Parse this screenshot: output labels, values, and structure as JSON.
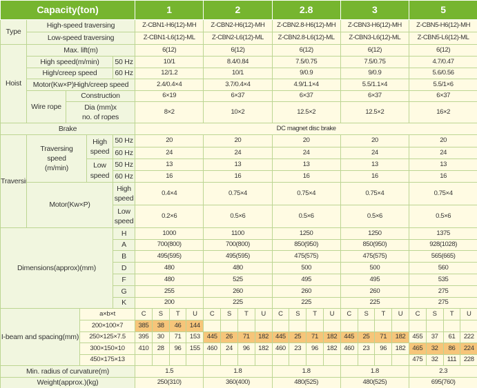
{
  "header": {
    "label": "Capacity(ton)",
    "capacities": [
      "1",
      "2",
      "2.8",
      "3",
      "5"
    ]
  },
  "type": {
    "label": "Type",
    "rows": [
      {
        "label": "High-speed traversing",
        "values": [
          "Z-CBN1-H6(12)-MH",
          "Z-CBN2-H6(12)-MH",
          "Z-CBN2.8-H6(12)-MH",
          "Z-CBN3-H6(12)-MH",
          "Z-CBN5-H6(12)-MH"
        ]
      },
      {
        "label": "Low-speed traversing",
        "values": [
          "Z-CBN1-L6(12)-ML",
          "Z-CBN2-L6(12)-ML",
          "Z-CBN2.8-L6(12)-ML",
          "Z-CBN3-L6(12)-ML",
          "Z-CBN5-L6(12)-ML"
        ]
      }
    ]
  },
  "hoist": {
    "label": "Hoist",
    "max_lift": {
      "label": "Max. lift(m)",
      "values": [
        "6(12)",
        "6(12)",
        "6(12)",
        "6(12)",
        "6(12)"
      ]
    },
    "speed": {
      "rows": [
        {
          "label": "High speed(m/min)",
          "freq": "50 Hz",
          "values": [
            "10/1",
            "8.4/0.84",
            "7.5/0.75",
            "7.5/0.75",
            "4.7/0.47"
          ]
        },
        {
          "label": "High/creep speed",
          "freq": "60 Hz",
          "values": [
            "12/1.2",
            "10/1",
            "9/0.9",
            "9/0.9",
            "5.6/0.56"
          ]
        }
      ]
    },
    "motor": {
      "label": "Motor(Kw×P)High/creep speed",
      "values": [
        "2.4/0.4×4",
        "3.7/0.4×4",
        "4.9/1.1×4",
        "5.5/1.1×4",
        "5.5/1×6"
      ]
    },
    "wire_rope": {
      "label": "Wire rope",
      "construction": {
        "label": "Construction",
        "values": [
          "6×19",
          "6×37",
          "6×37",
          "6×37",
          "6×37"
        ]
      },
      "diameter": {
        "label_lines": [
          "Dia (mm)x",
          "no. of ropes"
        ],
        "values": [
          "8×2",
          "10×2",
          "12.5×2",
          "12.5×2",
          "16×2"
        ]
      }
    }
  },
  "brake": {
    "label": "Brake",
    "value": "DC magnet disc brake"
  },
  "traversing": {
    "label": "Traversing",
    "speed": {
      "label_lines": [
        "Traversing",
        "speed",
        "(m/min)"
      ],
      "groups": [
        {
          "label_lines": [
            "High",
            "speed"
          ],
          "rows": [
            {
              "freq": "50 Hz",
              "values": [
                "20",
                "20",
                "20",
                "20",
                "20"
              ]
            },
            {
              "freq": "60 Hz",
              "values": [
                "24",
                "24",
                "24",
                "24",
                "24"
              ]
            }
          ]
        },
        {
          "label_lines": [
            "Low",
            "speed"
          ],
          "rows": [
            {
              "freq": "50 Hz",
              "values": [
                "13",
                "13",
                "13",
                "13",
                "13"
              ]
            },
            {
              "freq": "60 Hz",
              "values": [
                "16",
                "16",
                "16",
                "16",
                "16"
              ]
            }
          ]
        }
      ]
    },
    "motor": {
      "label": "Motor(Kw×P)",
      "rows": [
        {
          "label_lines": [
            "High",
            "speed"
          ],
          "values": [
            "0.4×4",
            "0.75×4",
            "0.75×4",
            "0.75×4",
            "0.75×4"
          ]
        },
        {
          "label_lines": [
            "Low",
            "speed"
          ],
          "values": [
            "0.2×6",
            "0.5×6",
            "0.5×6",
            "0.5×6",
            "0.5×6"
          ]
        }
      ]
    }
  },
  "dimensions": {
    "label": "Dimensions(approx)(mm)",
    "rows": [
      {
        "label": "H",
        "values": [
          "1000",
          "1100",
          "1250",
          "1250",
          "1375"
        ]
      },
      {
        "label": "A",
        "values": [
          "700(800)",
          "700(800)",
          "850(950)",
          "850(950)",
          "928(1028)"
        ]
      },
      {
        "label": "B",
        "values": [
          "495(595)",
          "495(595)",
          "475(575)",
          "475(575)",
          "565(665)"
        ]
      },
      {
        "label": "D",
        "values": [
          "480",
          "480",
          "500",
          "500",
          "560"
        ]
      },
      {
        "label": "F",
        "values": [
          "480",
          "525",
          "495",
          "495",
          "535"
        ]
      },
      {
        "label": "G",
        "values": [
          "255",
          "260",
          "260",
          "260",
          "275"
        ]
      },
      {
        "label": "K",
        "values": [
          "200",
          "225",
          "225",
          "225",
          "275"
        ]
      }
    ]
  },
  "i_beam": {
    "label": "I-beam and spacing(mm)",
    "header_label": "a×b×t",
    "column_labels": [
      "C",
      "S",
      "T",
      "U"
    ],
    "rows": [
      {
        "size": "200×100×7",
        "values": [
          [
            "385",
            "38",
            "46",
            "144"
          ],
          null,
          null,
          null,
          null
        ],
        "highlight": [
          0
        ]
      },
      {
        "size": "250×125×7.5",
        "values": [
          [
            "395",
            "30",
            "71",
            "153"
          ],
          [
            "445",
            "26",
            "71",
            "182"
          ],
          [
            "445",
            "25",
            "71",
            "182"
          ],
          [
            "445",
            "25",
            "71",
            "182"
          ],
          [
            "455",
            "37",
            "61",
            "222"
          ]
        ],
        "highlight": [
          1,
          2,
          3
        ]
      },
      {
        "size": "300×150×10",
        "values": [
          [
            "410",
            "28",
            "96",
            "155"
          ],
          [
            "460",
            "24",
            "96",
            "182"
          ],
          [
            "460",
            "23",
            "96",
            "182"
          ],
          [
            "460",
            "23",
            "96",
            "182"
          ],
          [
            "465",
            "32",
            "86",
            "224"
          ]
        ],
        "highlight": [
          4
        ]
      },
      {
        "size": "450×175×13",
        "values": [
          null,
          null,
          null,
          null,
          [
            "475",
            "32",
            "111",
            "228"
          ]
        ],
        "highlight": []
      }
    ]
  },
  "min_radius": {
    "label": "Min. radius of curvature(m)",
    "values": [
      "1.5",
      "1.8",
      "1.8",
      "1.8",
      "2.3"
    ]
  },
  "weight": {
    "label": "Weight(approx.)(kg)",
    "values": [
      "250(310)",
      "360(400)",
      "480(525)",
      "480(525)",
      "695(760)"
    ]
  }
}
